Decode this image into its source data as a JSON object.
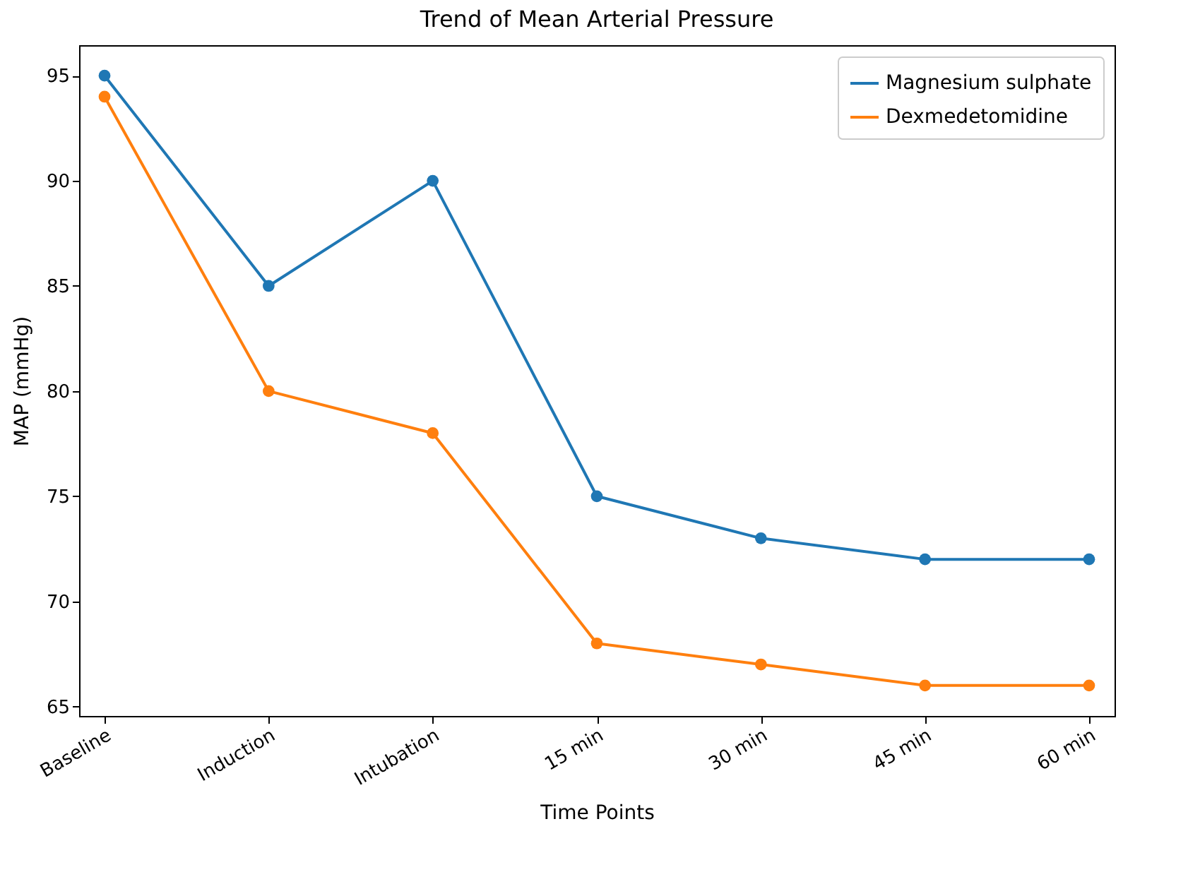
{
  "chart_data": {
    "type": "line",
    "title": "Trend of Mean Arterial Pressure",
    "xlabel": "Time Points",
    "ylabel": "MAP (mmHg)",
    "categories": [
      "Baseline",
      "Induction",
      "Intubation",
      "15 min",
      "30 min",
      "45 min",
      "60 min"
    ],
    "series": [
      {
        "name": "Magnesium sulphate",
        "color": "#1f77b4",
        "values": [
          95,
          85,
          90,
          75,
          73,
          72,
          72
        ]
      },
      {
        "name": "Dexmedetomidine",
        "color": "#ff7f0e",
        "values": [
          94,
          80,
          78,
          68,
          67,
          66,
          66
        ]
      }
    ],
    "ylim": [
      64.55,
      96.45
    ],
    "yticks": [
      65,
      70,
      75,
      80,
      85,
      90,
      95
    ],
    "grid": false,
    "legend": "top right",
    "marker": "circle",
    "line_style": "solid"
  }
}
